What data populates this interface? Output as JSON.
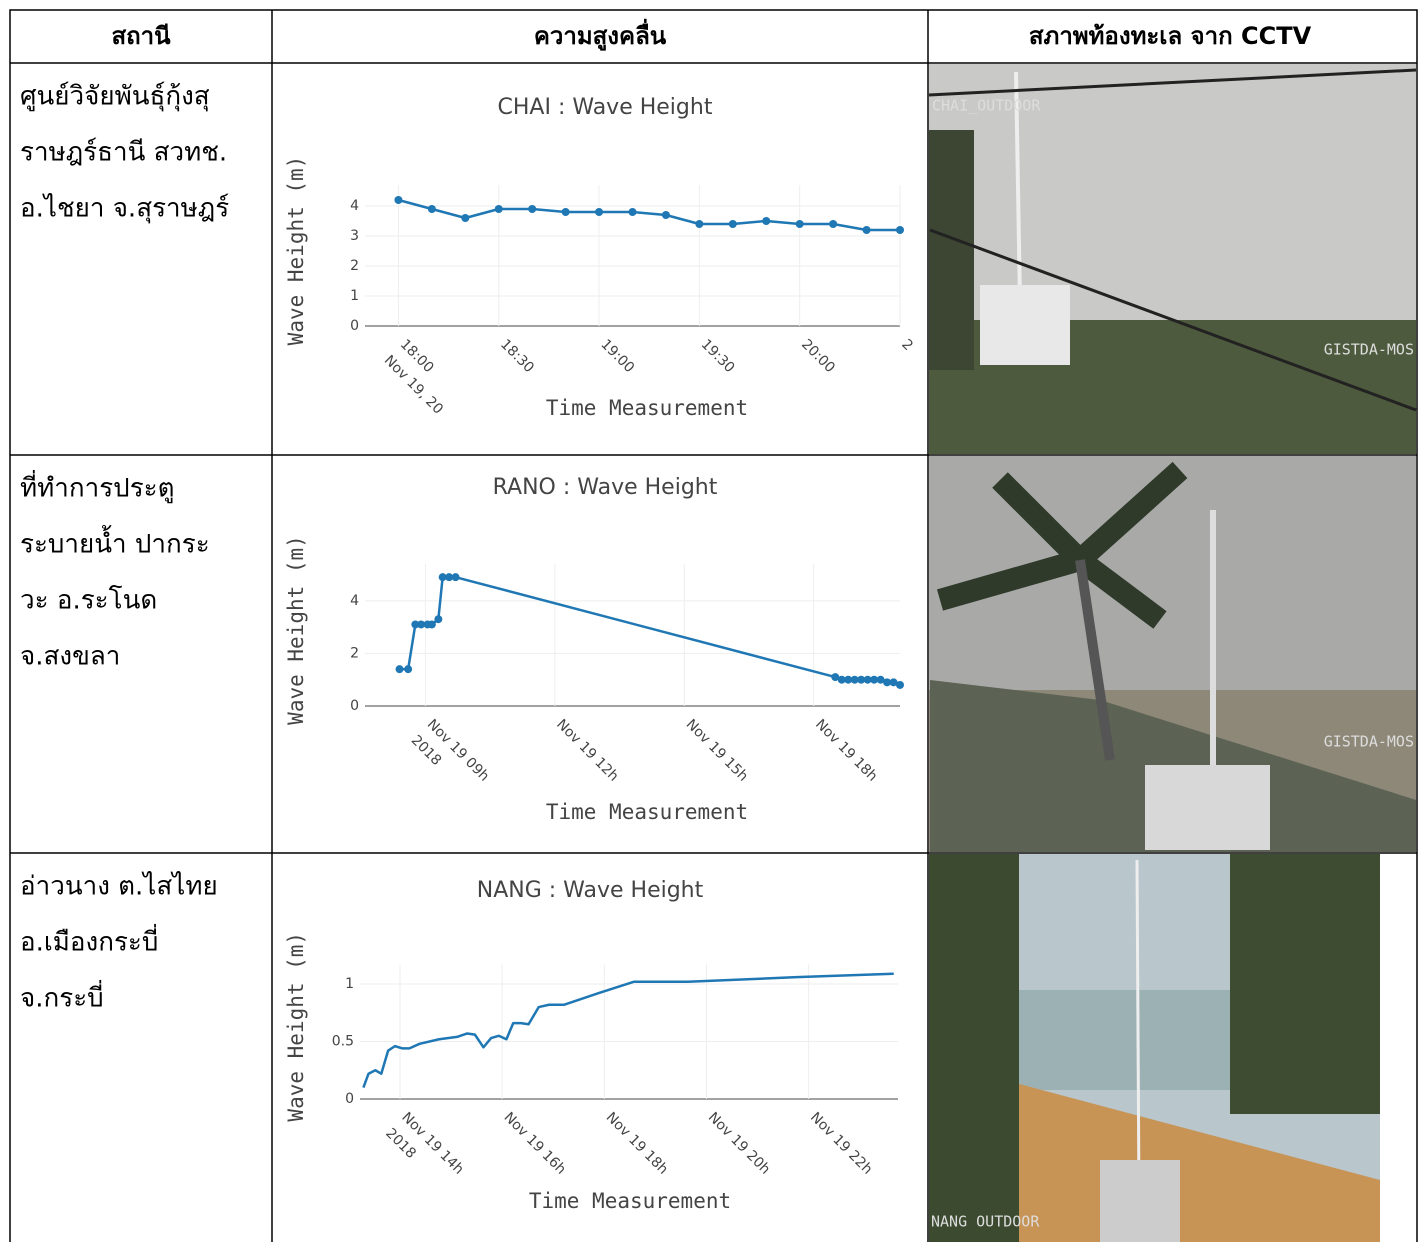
{
  "table": {
    "headers": [
      "สถานี",
      "ความสูงคลื่น",
      "สภาพท้องทะเล จาก CCTV"
    ],
    "stations": [
      [
        "ศูนย์วิจัยพันธุ์กุ้งสุ",
        "ราษฎร์ธานี สวทช.",
        "อ.ไชยา จ.สุราษฎร์"
      ],
      [
        "ที่ทำการประตู",
        "ระบายน้ำ ปากระ",
        "วะ อ.ระโนด",
        "จ.สงขลา"
      ],
      [
        "อ่าวนาง ต.ไสไทย",
        "อ.เมืองกระบี่",
        "จ.กระบี่"
      ]
    ],
    "cctv_labels": [
      [
        "CHAI_OUTDOOR",
        "GISTDA-MOS"
      ],
      [
        "GISTDA-MOS"
      ],
      [
        "NANG OUTDOOR"
      ]
    ]
  },
  "chart_data": [
    {
      "type": "line",
      "title": "CHAI : Wave Height",
      "x_label": "Time Measurement",
      "y_label": "Wave Height (m)",
      "color": "#1f77b4",
      "markers": true,
      "grid": true,
      "x": [
        "18:00",
        "18:10",
        "18:20",
        "18:30",
        "18:40",
        "18:50",
        "19:00",
        "19:10",
        "19:20",
        "19:30",
        "19:40",
        "19:50",
        "20:00",
        "20:10",
        "20:20",
        "20:30"
      ],
      "values": [
        4.2,
        3.9,
        3.6,
        3.9,
        3.9,
        3.8,
        3.8,
        3.8,
        3.7,
        3.4,
        3.4,
        3.5,
        3.4,
        3.4,
        3.2,
        3.2
      ],
      "xlim": [
        "17:50",
        "20:30"
      ],
      "xticks": [
        "18:00",
        "18:30",
        "19:00",
        "19:30",
        "20:00",
        {
          "value": "20:30",
          "label": "2"
        }
      ],
      "xtick_sublabel": "Nov 19, 20",
      "ylim": [
        0,
        4.7
      ],
      "yticks": [
        0,
        1,
        2,
        3,
        4
      ]
    },
    {
      "type": "line",
      "title": "RANO : Wave Height",
      "x_label": "Time Measurement",
      "y_label": "Wave Height (m)",
      "color": "#1f77b4",
      "markers": true,
      "grid": true,
      "x": [
        "08:24",
        "08:36",
        "08:46",
        "08:54",
        "09:03",
        "09:09",
        "09:18",
        "09:24",
        "09:33",
        "09:42",
        "18:30",
        "18:39",
        "18:48",
        "18:57",
        "19:06",
        "19:15",
        "19:24",
        "19:33",
        "19:42",
        "19:51",
        "20:00"
      ],
      "values": [
        1.4,
        1.4,
        3.1,
        3.1,
        3.1,
        3.1,
        3.3,
        4.9,
        4.9,
        4.9,
        1.1,
        1.0,
        1.0,
        1.0,
        1.0,
        1.0,
        1.0,
        1.0,
        0.9,
        0.9,
        0.8
      ],
      "xlim": [
        "07:36",
        "20:00"
      ],
      "xticks": [
        {
          "value": "09:00",
          "label": "Nov 19 09h"
        },
        {
          "value": "12:00",
          "label": "Nov 19 12h"
        },
        {
          "value": "15:00",
          "label": "Nov 19 15h"
        },
        {
          "value": "18:00",
          "label": "Nov 19 18h"
        }
      ],
      "xtick_sublabel": "2018",
      "ylim": [
        0,
        5.4
      ],
      "yticks": [
        0,
        2,
        4
      ]
    },
    {
      "type": "line",
      "title": "NANG : Wave Height",
      "x_label": "Time Measurement",
      "y_label": "Wave Height (m)",
      "color": "#1f77b4",
      "markers": false,
      "grid": true,
      "x": [
        "13:17",
        "13:23",
        "13:31",
        "13:38",
        "13:46",
        "13:54",
        "14:03",
        "14:11",
        "14:23",
        "14:46",
        "15:07",
        "15:19",
        "15:28",
        "15:38",
        "15:47",
        "15:56",
        "16:05",
        "16:13",
        "16:22",
        "16:31",
        "16:43",
        "16:55",
        "17:13",
        "17:53",
        "18:35",
        "19:38",
        "21:46",
        "23:40"
      ],
      "values": [
        0.1,
        0.22,
        0.25,
        0.22,
        0.42,
        0.46,
        0.44,
        0.44,
        0.48,
        0.52,
        0.54,
        0.57,
        0.56,
        0.45,
        0.53,
        0.55,
        0.52,
        0.66,
        0.66,
        0.65,
        0.8,
        0.82,
        0.82,
        0.92,
        1.02,
        1.02,
        1.06,
        1.09
      ],
      "xlim": [
        "13:13",
        "23:45"
      ],
      "xticks": [
        {
          "value": "14:00",
          "label": "Nov 19 14h"
        },
        {
          "value": "16:00",
          "label": "Nov 19 16h"
        },
        {
          "value": "18:00",
          "label": "Nov 19 18h"
        },
        {
          "value": "20:00",
          "label": "Nov 19 20h"
        },
        {
          "value": "22:00",
          "label": "Nov 19 22h"
        }
      ],
      "xtick_sublabel": "2018",
      "ylim": [
        0,
        1.17
      ],
      "yticks": [
        0,
        0.5,
        1
      ]
    }
  ]
}
